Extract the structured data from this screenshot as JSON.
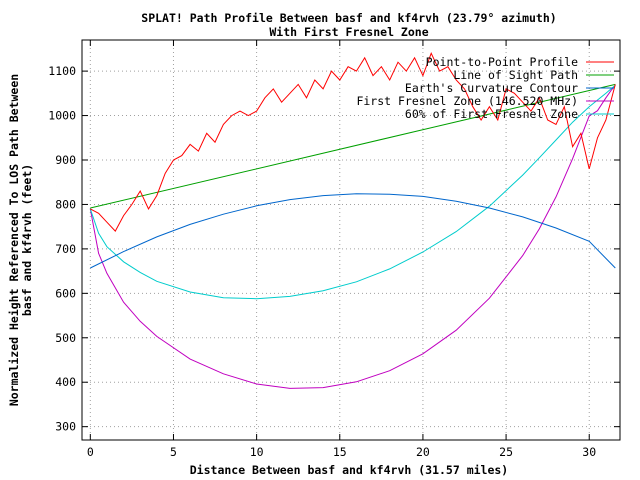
{
  "chart_data": {
    "type": "line",
    "title": "SPLAT! Path Profile Between basf and kf4rvh (23.79° azimuth)",
    "subtitle": "With First Fresnel Zone",
    "xlabel": "Distance Between basf and kf4rvh (31.57 miles)",
    "ylabel_line1": "Normalized Height Referenced To LOS Path Between",
    "ylabel_line2": "basf and kf4rvh (feet)",
    "xlim": [
      -0.5,
      31.85
    ],
    "ylim": [
      270,
      1170
    ],
    "x_ticks": [
      0,
      5,
      10,
      15,
      20,
      25,
      30
    ],
    "y_ticks": [
      300,
      400,
      500,
      600,
      700,
      800,
      900,
      1000,
      1100
    ],
    "grid": true,
    "legend_position": "top-right",
    "series": [
      {
        "name": "Point-to-Point Profile",
        "color": "#ff0000",
        "x": [
          0,
          0.5,
          1.0,
          1.5,
          2.0,
          2.5,
          3.0,
          3.5,
          4.0,
          4.5,
          5.0,
          5.5,
          6.0,
          6.5,
          7.0,
          7.5,
          8.0,
          8.5,
          9.0,
          9.5,
          10.0,
          10.5,
          11.0,
          11.5,
          12.0,
          12.5,
          13.0,
          13.5,
          14.0,
          14.5,
          15.0,
          15.5,
          16.0,
          16.5,
          17.0,
          17.5,
          18.0,
          18.5,
          19.0,
          19.5,
          20.0,
          20.5,
          21.0,
          21.5,
          22.0,
          22.5,
          23.0,
          23.5,
          24.0,
          24.5,
          25.0,
          25.5,
          26.0,
          26.5,
          27.0,
          27.5,
          28.0,
          28.5,
          29.0,
          29.5,
          30.0,
          30.5,
          31.0,
          31.57
        ],
        "values": [
          790,
          780,
          760,
          740,
          775,
          800,
          830,
          790,
          820,
          870,
          900,
          910,
          935,
          920,
          960,
          940,
          980,
          1000,
          1010,
          1000,
          1010,
          1040,
          1060,
          1030,
          1050,
          1070,
          1040,
          1080,
          1060,
          1100,
          1080,
          1110,
          1100,
          1130,
          1090,
          1110,
          1080,
          1120,
          1100,
          1130,
          1090,
          1140,
          1100,
          1110,
          1080,
          1060,
          1020,
          990,
          1020,
          990,
          1060,
          1050,
          1030,
          1010,
          1040,
          990,
          980,
          1020,
          930,
          960,
          880,
          950,
          990,
          1070
        ]
      },
      {
        "name": "Line of Sight Path",
        "color": "#00a000",
        "x": [
          0,
          31.57
        ],
        "values": [
          792,
          1070
        ]
      },
      {
        "name": "Earth's Curvature Contour",
        "color": "#0066cc",
        "x": [
          0,
          2,
          4,
          6,
          8,
          10,
          12,
          14,
          16,
          18,
          20,
          22,
          24,
          26,
          28,
          30,
          31.57
        ],
        "values": [
          657,
          694,
          727,
          755,
          778,
          797,
          811,
          820,
          824,
          823,
          818,
          807,
          792,
          772,
          747,
          717,
          657
        ]
      },
      {
        "name": "First Fresnel Zone (146.520 MHz)",
        "color": "#c000c0",
        "x": [
          0,
          0.5,
          1,
          2,
          3,
          4,
          6,
          8,
          10,
          12,
          14,
          16,
          18,
          20,
          22,
          24,
          26,
          27,
          28,
          29,
          30,
          30.5,
          31,
          31.3,
          31.57
        ],
        "values": [
          790,
          690,
          645,
          580,
          537,
          503,
          452,
          419,
          396,
          386,
          388,
          401,
          426,
          464,
          517,
          589,
          685,
          745,
          817,
          903,
          999,
          1011,
          1040,
          1056,
          1068
        ]
      },
      {
        "name": "60% of First Fresnel Zone",
        "color": "#00cccc",
        "x": [
          0,
          0.5,
          1,
          2,
          3,
          4,
          6,
          8,
          10,
          12,
          14,
          16,
          18,
          20,
          22,
          24,
          26,
          27,
          28,
          29,
          30,
          31,
          31.57
        ],
        "values": [
          790,
          735,
          705,
          671,
          647,
          627,
          603,
          590,
          588,
          593,
          606,
          626,
          655,
          693,
          739,
          796,
          866,
          905,
          945,
          985,
          1020,
          1050,
          1068
        ]
      }
    ]
  }
}
